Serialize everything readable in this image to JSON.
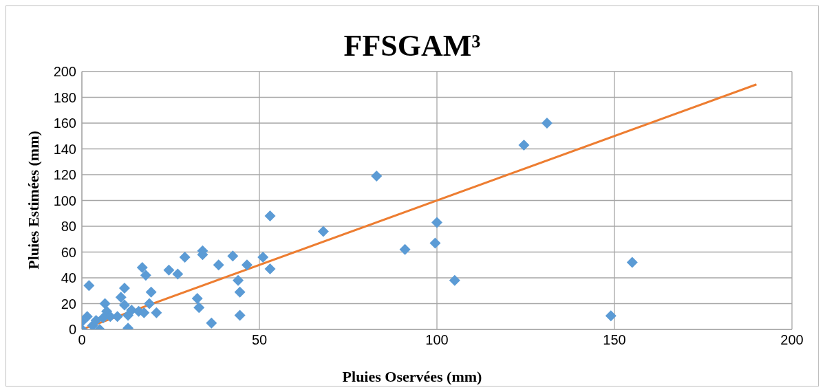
{
  "chart_data": {
    "type": "scatter",
    "title": "FFSGAM³",
    "xlabel": "Pluies Oservées (mm)",
    "ylabel": "Pluies Estimées (mm)",
    "xlim": [
      0,
      200
    ],
    "xticks": [
      0,
      50,
      100,
      150,
      200
    ],
    "ylim": [
      0,
      200
    ],
    "yticks": [
      0,
      20,
      40,
      60,
      80,
      100,
      120,
      140,
      160,
      180,
      200
    ],
    "grid": true,
    "marker": "diamond",
    "series": [
      {
        "color": "#5b9bd5",
        "x": [
          0,
          0,
          1,
          1.5,
          2,
          3,
          4,
          5,
          6,
          6.5,
          7,
          8,
          10,
          11,
          12,
          12,
          13,
          13,
          14,
          16,
          17,
          18,
          17.5,
          19,
          19.5,
          21,
          24.5,
          27,
          29,
          32.5,
          33,
          34,
          34,
          36,
          36.5,
          38.5,
          42.5,
          44,
          44.5,
          44.5,
          46.5,
          51,
          53,
          53,
          68,
          83,
          91,
          99.5,
          100,
          105,
          124.5,
          131,
          149,
          155
        ],
        "values": [
          6,
          0,
          null,
          10,
          34,
          3,
          7,
          0,
          9,
          20,
          14,
          10,
          10,
          25,
          32,
          19,
          11,
          1,
          15,
          14,
          48,
          42,
          13,
          20,
          29,
          13,
          46,
          43,
          56,
          24,
          17,
          61,
          58,
          null,
          5,
          50,
          57,
          38,
          29,
          11,
          50,
          56,
          88,
          47,
          76,
          119,
          62,
          67,
          83,
          38,
          143,
          160,
          10.5,
          52
        ]
      },
      {
        "type": "line",
        "marker": "none",
        "color": "#ed7d31",
        "x": [
          1,
          190
        ],
        "values": [
          1,
          190
        ]
      }
    ]
  }
}
